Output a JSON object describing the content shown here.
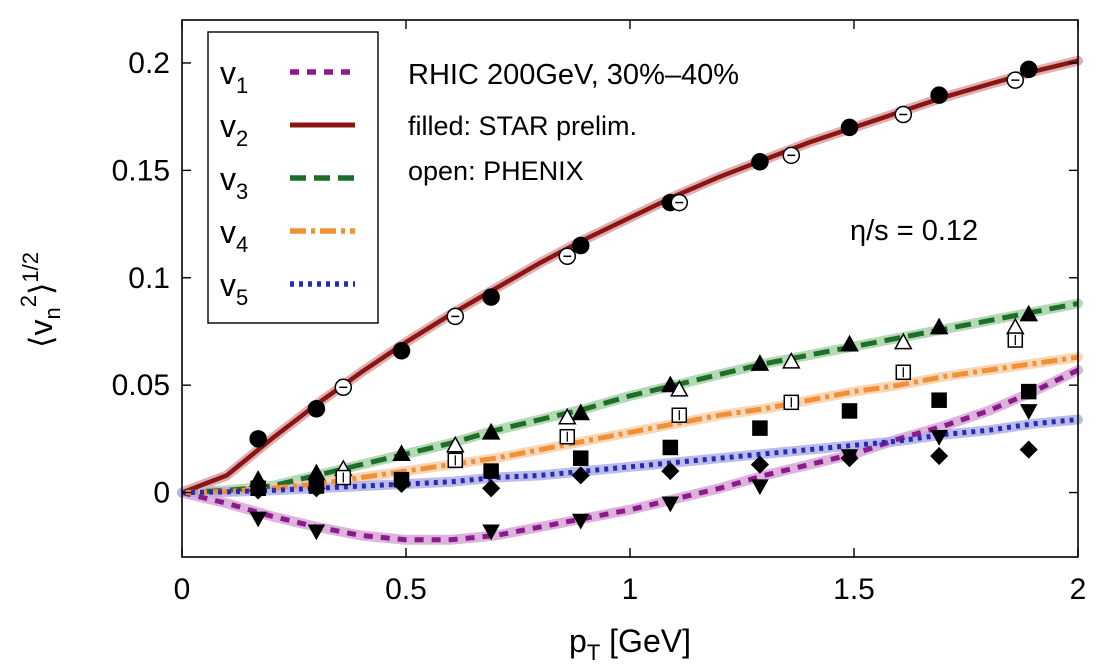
{
  "chart_data": {
    "type": "line",
    "xlabel_main": "p",
    "xlabel_sub": "T",
    "xlabel_rest": " [GeV]",
    "ylabel_pre": "⟨v",
    "ylabel_sub": "n",
    "ylabel_sup": "2",
    "ylabel_close": "⟩",
    "ylabel_pow": "1/2",
    "xlim": [
      0,
      2
    ],
    "ylim": [
      -0.03,
      0.22
    ],
    "xticks": [
      {
        "value": 0,
        "label": "0"
      },
      {
        "value": 0.5,
        "label": "0.5"
      },
      {
        "value": 1,
        "label": "1"
      },
      {
        "value": 1.5,
        "label": "1.5"
      },
      {
        "value": 2,
        "label": "2"
      }
    ],
    "yticks": [
      {
        "value": 0,
        "label": "0"
      },
      {
        "value": 0.05,
        "label": "0.05"
      },
      {
        "value": 0.1,
        "label": "0.1"
      },
      {
        "value": 0.15,
        "label": "0.15"
      },
      {
        "value": 0.2,
        "label": "0.2"
      }
    ],
    "annotations": {
      "line1": "RHIC 200GeV, 30%–40%",
      "line2": "filled: STAR prelim.",
      "line3": "open: PHENIX",
      "eta": "η/s = 0.12"
    },
    "legend_position": "top-left",
    "series": [
      {
        "name": "v",
        "sub": "1",
        "color": "#8b1a8b",
        "band": "#d7a6d7",
        "style": "dash-short",
        "x": [
          0,
          0.1,
          0.2,
          0.3,
          0.4,
          0.5,
          0.6,
          0.7,
          0.8,
          0.9,
          1.0,
          1.1,
          1.2,
          1.3,
          1.4,
          1.5,
          1.6,
          1.7,
          1.8,
          1.9,
          2.0
        ],
        "y": [
          0,
          -0.005,
          -0.011,
          -0.016,
          -0.02,
          -0.022,
          -0.022,
          -0.02,
          -0.016,
          -0.012,
          -0.008,
          -0.003,
          0.002,
          0.008,
          0.013,
          0.018,
          0.025,
          0.031,
          0.038,
          0.047,
          0.057
        ]
      },
      {
        "name": "v",
        "sub": "2",
        "color": "#8b1414",
        "band": "#d9a0a0",
        "style": "solid",
        "x": [
          0,
          0.1,
          0.2,
          0.3,
          0.4,
          0.5,
          0.6,
          0.7,
          0.8,
          0.9,
          1.0,
          1.1,
          1.2,
          1.3,
          1.4,
          1.5,
          1.6,
          1.7,
          1.8,
          1.9,
          2.0
        ],
        "y": [
          0,
          0.008,
          0.025,
          0.041,
          0.056,
          0.07,
          0.083,
          0.095,
          0.107,
          0.118,
          0.128,
          0.138,
          0.147,
          0.155,
          0.163,
          0.17,
          0.177,
          0.184,
          0.19,
          0.196,
          0.201
        ]
      },
      {
        "name": "v",
        "sub": "3",
        "color": "#1e6e2a",
        "band": "#a6d2a8",
        "style": "dash",
        "x": [
          0,
          0.1,
          0.2,
          0.3,
          0.4,
          0.5,
          0.6,
          0.7,
          0.8,
          0.9,
          1.0,
          1.1,
          1.2,
          1.3,
          1.4,
          1.5,
          1.6,
          1.7,
          1.8,
          1.9,
          2.0
        ],
        "y": [
          0,
          0.001,
          0.003,
          0.008,
          0.013,
          0.018,
          0.023,
          0.029,
          0.034,
          0.039,
          0.045,
          0.05,
          0.055,
          0.06,
          0.064,
          0.068,
          0.072,
          0.076,
          0.08,
          0.084,
          0.088
        ]
      },
      {
        "name": "v",
        "sub": "4",
        "color": "#f0913a",
        "band": "#f8cfa8",
        "style": "dashdot",
        "x": [
          0,
          0.1,
          0.2,
          0.3,
          0.4,
          0.5,
          0.6,
          0.7,
          0.8,
          0.9,
          1.0,
          1.1,
          1.2,
          1.3,
          1.4,
          1.5,
          1.6,
          1.7,
          1.8,
          1.9,
          2.0
        ],
        "y": [
          0,
          0.0005,
          0.002,
          0.004,
          0.007,
          0.01,
          0.013,
          0.016,
          0.02,
          0.024,
          0.028,
          0.032,
          0.036,
          0.039,
          0.043,
          0.047,
          0.05,
          0.054,
          0.057,
          0.06,
          0.063
        ]
      },
      {
        "name": "v",
        "sub": "5",
        "color": "#2929b8",
        "band": "#b0b0e6",
        "style": "dot",
        "x": [
          0,
          0.1,
          0.2,
          0.3,
          0.4,
          0.5,
          0.6,
          0.7,
          0.8,
          0.9,
          1.0,
          1.1,
          1.2,
          1.3,
          1.4,
          1.5,
          1.6,
          1.7,
          1.8,
          1.9,
          2.0
        ],
        "y": [
          0,
          0.0003,
          0.001,
          0.002,
          0.003,
          0.004,
          0.005,
          0.007,
          0.008,
          0.01,
          0.012,
          0.014,
          0.016,
          0.018,
          0.02,
          0.022,
          0.024,
          0.027,
          0.029,
          0.032,
          0.034
        ]
      }
    ],
    "points": [
      {
        "set": "STAR v2",
        "marker": "filled-circle",
        "x": [
          0.17,
          0.3,
          0.49,
          0.69,
          0.89,
          1.09,
          1.29,
          1.49,
          1.69,
          1.89
        ],
        "y": [
          0.025,
          0.039,
          0.066,
          0.091,
          0.115,
          0.135,
          0.154,
          0.17,
          0.185,
          0.197
        ]
      },
      {
        "set": "PHENIX v2",
        "marker": "open-circle",
        "x": [
          0.36,
          0.61,
          0.86,
          1.11,
          1.36,
          1.61,
          1.86
        ],
        "y": [
          0.049,
          0.082,
          0.11,
          0.135,
          0.157,
          0.176,
          0.192
        ]
      },
      {
        "set": "STAR v3",
        "marker": "filled-triangle-up",
        "x": [
          0.17,
          0.3,
          0.49,
          0.69,
          0.89,
          1.09,
          1.29,
          1.49,
          1.69,
          1.89
        ],
        "y": [
          0.006,
          0.009,
          0.018,
          0.028,
          0.037,
          0.05,
          0.06,
          0.069,
          0.077,
          0.083
        ]
      },
      {
        "set": "PHENIX v3",
        "marker": "open-triangle-up",
        "x": [
          0.36,
          0.61,
          0.86,
          1.11,
          1.36,
          1.61,
          1.86
        ],
        "y": [
          0.011,
          0.022,
          0.035,
          0.048,
          0.061,
          0.07,
          0.077
        ]
      },
      {
        "set": "STAR v4",
        "marker": "filled-square",
        "x": [
          0.17,
          0.3,
          0.49,
          0.69,
          0.89,
          1.09,
          1.29,
          1.49,
          1.69,
          1.89
        ],
        "y": [
          0.002,
          0.003,
          0.006,
          0.01,
          0.016,
          0.021,
          0.03,
          0.038,
          0.043,
          0.047
        ]
      },
      {
        "set": "PHENIX v4",
        "marker": "open-square",
        "x": [
          0.36,
          0.61,
          0.86,
          1.11,
          1.36,
          1.61,
          1.86
        ],
        "y": [
          0.007,
          0.015,
          0.026,
          0.036,
          0.042,
          0.056,
          0.071
        ]
      },
      {
        "set": "STAR v5",
        "marker": "filled-diamond",
        "x": [
          0.17,
          0.3,
          0.49,
          0.69,
          0.89,
          1.09,
          1.29,
          1.49,
          1.69,
          1.89
        ],
        "y": [
          0.001,
          0.002,
          0.004,
          0.002,
          0.008,
          0.01,
          0.013,
          0.016,
          0.017,
          0.02
        ]
      },
      {
        "set": "STAR v1",
        "marker": "filled-triangle-down",
        "x": [
          0.17,
          0.3,
          0.69,
          0.89,
          1.09,
          1.29,
          1.49,
          1.69,
          1.89
        ],
        "y": [
          -0.012,
          -0.018,
          -0.018,
          -0.013,
          -0.005,
          0.003,
          0.017,
          0.026,
          0.038
        ]
      }
    ]
  }
}
